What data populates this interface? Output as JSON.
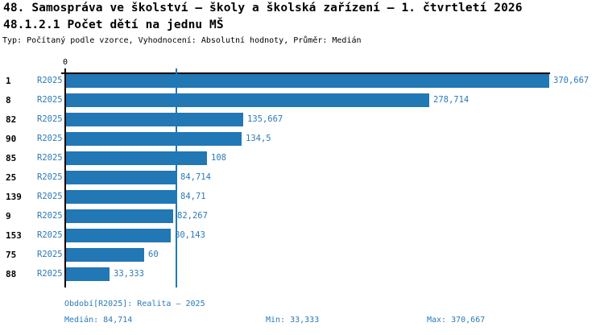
{
  "header": {
    "title": "48. Samospráva ve školství – školy a školská zařízení – 1. čtvrtletí 2026",
    "subtitle": "48.1.2.1 Počet dětí na jednu MŠ",
    "meta": "Typ: Počítaný podle vzorce, Vyhodnocení: Absolutní hodnoty, Průměr: Medián"
  },
  "axis": {
    "zero_label": "0"
  },
  "chart_data": {
    "type": "bar",
    "orientation": "horizontal",
    "title": "48.1.2.1 Počet dětí na jednu MŠ",
    "xlabel": "",
    "ylabel": "",
    "xlim": [
      0,
      370.667
    ],
    "x_tick_labels": [
      "0"
    ],
    "grid": false,
    "legend": false,
    "series_label": "R2025",
    "categories": [
      "1",
      "8",
      "82",
      "90",
      "85",
      "25",
      "139",
      "9",
      "153",
      "75",
      "88"
    ],
    "values": [
      370.667,
      278.714,
      135.667,
      134.5,
      108,
      84.714,
      84.71,
      82.267,
      80.143,
      60,
      33.333
    ],
    "value_labels": [
      "370,667",
      "278,714",
      "135,667",
      "134,5",
      "108",
      "84,714",
      "84,71",
      "82,267",
      "80,143",
      "60",
      "33,333"
    ],
    "median": 84.714,
    "min": 33.333,
    "max": 370.667,
    "median_line_value": 84.714,
    "bar_color": "#2277b5",
    "label_color": "#2b7ab8",
    "axis_color": "#000000"
  },
  "footer": {
    "period": "Období[R2025]: Realita – 2025",
    "median": "Medián: 84,714",
    "min": "Min: 33,333",
    "max": "Max: 370,667"
  }
}
